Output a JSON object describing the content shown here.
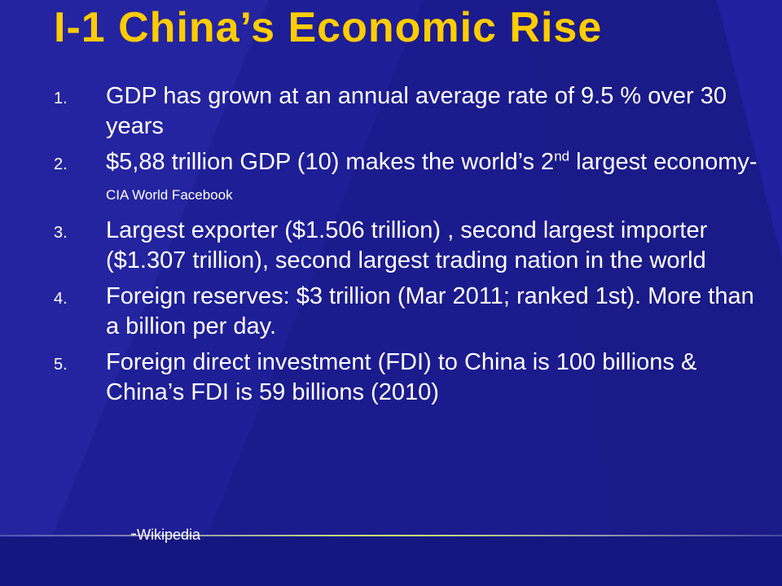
{
  "slide": {
    "title": "I-1 China’s Economic Rise",
    "items": [
      {
        "number": "1.",
        "text": "GDP has grown at an annual average rate of 9.5 % over 30 years"
      },
      {
        "number": "2.",
        "text_before": "$5,88 trillion GDP (10) makes the world’s 2",
        "sup": "nd",
        "text_after": " largest economy- ",
        "source": "CIA World Facebook"
      },
      {
        "number": "3.",
        "text": "Largest exporter ($1.506 trillion) , second largest importer ($1.307 trillion), second largest trading nation in the world"
      },
      {
        "number": "4.",
        "text": "Foreign reserves: $3 trillion (Mar 2011; ranked 1st). More than a billion per day."
      },
      {
        "number": "5.",
        "text": "Foreign direct investment (FDI) to China is 100 billions & China’s FDI is 59 billions (2010)"
      }
    ],
    "attribution": {
      "dash": "-",
      "source": "Wikipedia"
    }
  },
  "colors": {
    "background": "#1b1b8e",
    "title": "#ffcc00",
    "text": "#ffffff",
    "rule": "#9acd32"
  }
}
